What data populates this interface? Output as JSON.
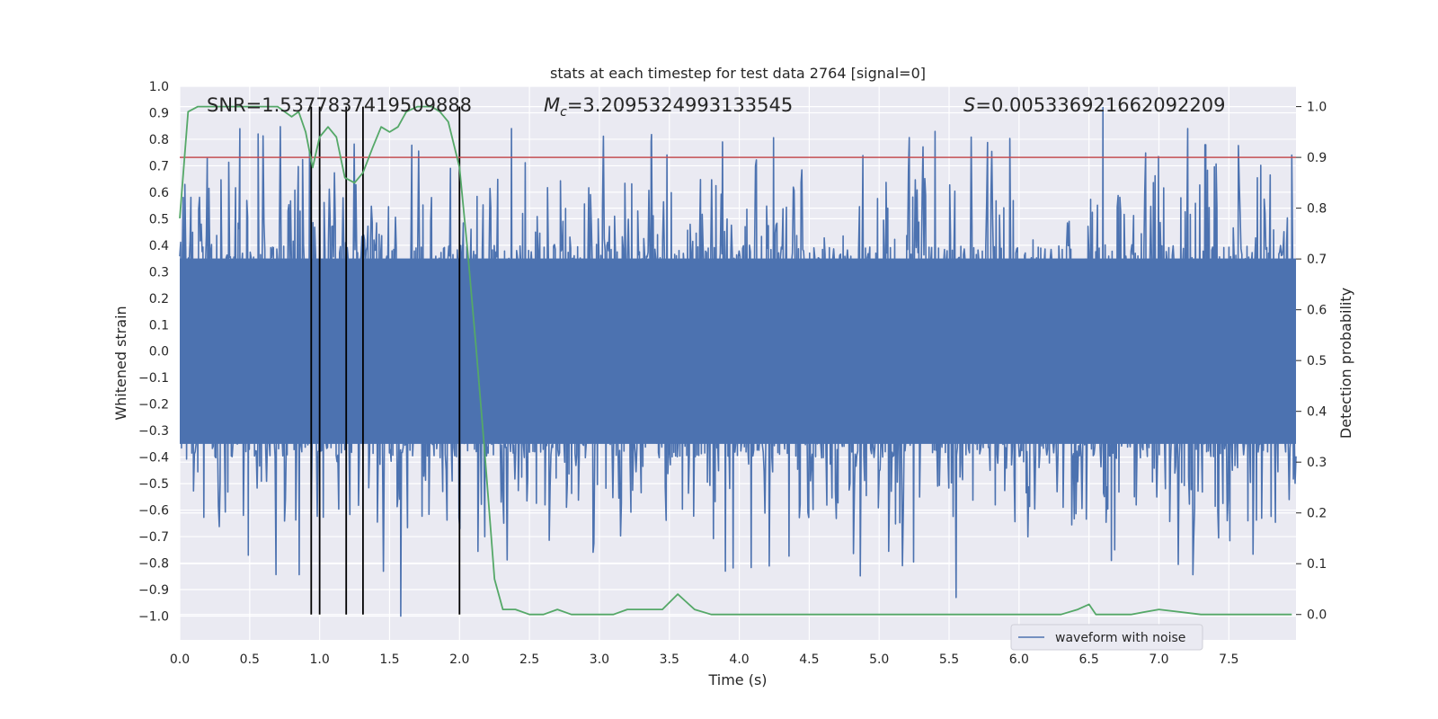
{
  "chart_data": {
    "type": "line",
    "title": "stats at each timestep for test data 2764 [signal=0]",
    "xlabel": "Time (s)",
    "ylabel": "Whitened strain",
    "y2label": "Detection probability",
    "xlim": [
      0,
      7.98
    ],
    "ylim": [
      -1.09,
      1.0
    ],
    "y2lim": [
      -0.05,
      1.04
    ],
    "xticks": [
      0.0,
      0.5,
      1.0,
      1.5,
      2.0,
      2.5,
      3.0,
      3.5,
      4.0,
      4.5,
      5.0,
      5.5,
      6.0,
      6.5,
      7.0,
      7.5
    ],
    "xtick_labels": [
      "0.0",
      "0.5",
      "1.0",
      "1.5",
      "2.0",
      "2.5",
      "3.0",
      "3.5",
      "4.0",
      "4.5",
      "5.0",
      "5.5",
      "6.0",
      "6.5",
      "7.0",
      "7.5"
    ],
    "yticks": [
      1.0,
      0.9,
      0.8,
      0.7,
      0.6,
      0.5,
      0.4,
      0.3,
      0.2,
      0.1,
      0.0,
      -0.1,
      -0.2,
      -0.3,
      -0.4,
      -0.5,
      -0.6,
      -0.7,
      -0.8,
      -0.9,
      -1.0
    ],
    "ytick_labels": [
      "1.0",
      "0.9",
      "0.8",
      "0.7",
      "0.6",
      "0.5",
      "0.4",
      "0.3",
      "0.2",
      "0.1",
      "0.0",
      "−0.1",
      "−0.2",
      "−0.3",
      "−0.4",
      "−0.5",
      "−0.6",
      "−0.7",
      "−0.8",
      "−0.9",
      "−1.0"
    ],
    "y2ticks": [
      1.0,
      0.9,
      0.8,
      0.7,
      0.6,
      0.5,
      0.4,
      0.3,
      0.2,
      0.1,
      0.0
    ],
    "y2tick_labels": [
      "1.0",
      "0.9",
      "0.8",
      "0.7",
      "0.6",
      "0.5",
      "0.4",
      "0.3",
      "0.2",
      "0.1",
      "0.0"
    ],
    "annotations": {
      "snr": "SNR=1.5377837419509888",
      "mc_symbol": "M",
      "mc_sub": "c",
      "mc_value": "=3.2095324993133545",
      "s_symbol": "S",
      "s_value": "=0.005336921662092209"
    },
    "legend": {
      "label": "waveform with noise",
      "location": "lower-right"
    },
    "threshold": {
      "probability": 0.9,
      "color": "#c44e52"
    },
    "event_markers": {
      "times": [
        0.94,
        1.0,
        1.19,
        1.31,
        2.0
      ],
      "color": "#000000"
    },
    "series": [
      {
        "name": "waveform with noise",
        "kind": "noise",
        "color": "#4c72b0",
        "axis": "left",
        "core_envelope": 0.35,
        "peak_envelope": 0.65,
        "extremes": [
          {
            "x": 0.43,
            "y": 0.84
          },
          {
            "x": 0.56,
            "y": 0.82
          },
          {
            "x": 0.49,
            "y": -0.77
          },
          {
            "x": 1.58,
            "y": -1.0
          },
          {
            "x": 3.37,
            "y": 0.79
          },
          {
            "x": 3.88,
            "y": 0.79
          },
          {
            "x": 5.55,
            "y": -0.93
          },
          {
            "x": 6.6,
            "y": 0.92
          },
          {
            "x": 6.66,
            "y": -0.79
          },
          {
            "x": 7.95,
            "y": 0.74
          }
        ]
      },
      {
        "name": "detection probability",
        "color": "#55a868",
        "axis": "right",
        "x": [
          0.0,
          0.06,
          0.13,
          0.25,
          0.4,
          0.55,
          0.7,
          0.75,
          0.8,
          0.85,
          0.9,
          0.95,
          1.0,
          1.06,
          1.12,
          1.18,
          1.25,
          1.31,
          1.38,
          1.44,
          1.5,
          1.56,
          1.62,
          1.7,
          1.8,
          1.86,
          1.92,
          2.0,
          2.06,
          2.12,
          2.18,
          2.25,
          2.31,
          2.4,
          2.5,
          2.6,
          2.7,
          2.8,
          2.9,
          3.0,
          3.1,
          3.2,
          3.3,
          3.45,
          3.56,
          3.68,
          3.8,
          3.9,
          4.0,
          4.2,
          4.5,
          5.0,
          5.5,
          6.0,
          6.3,
          6.42,
          6.5,
          6.55,
          6.65,
          6.8,
          7.0,
          7.3,
          7.6,
          7.8,
          7.95
        ],
        "y": [
          0.78,
          0.99,
          1.0,
          1.0,
          1.0,
          1.0,
          1.0,
          0.99,
          0.98,
          0.99,
          0.95,
          0.88,
          0.94,
          0.96,
          0.94,
          0.86,
          0.85,
          0.87,
          0.92,
          0.96,
          0.95,
          0.96,
          0.99,
          1.0,
          1.0,
          0.99,
          0.97,
          0.88,
          0.71,
          0.52,
          0.32,
          0.07,
          0.01,
          0.01,
          0.0,
          0.0,
          0.01,
          0.0,
          0.0,
          0.0,
          0.0,
          0.01,
          0.01,
          0.01,
          0.04,
          0.01,
          0.0,
          0.0,
          0.0,
          0.0,
          0.0,
          0.0,
          0.0,
          0.0,
          0.0,
          0.01,
          0.02,
          0.0,
          0.0,
          0.0,
          0.01,
          0.0,
          0.0,
          0.0,
          0.0
        ]
      }
    ]
  }
}
